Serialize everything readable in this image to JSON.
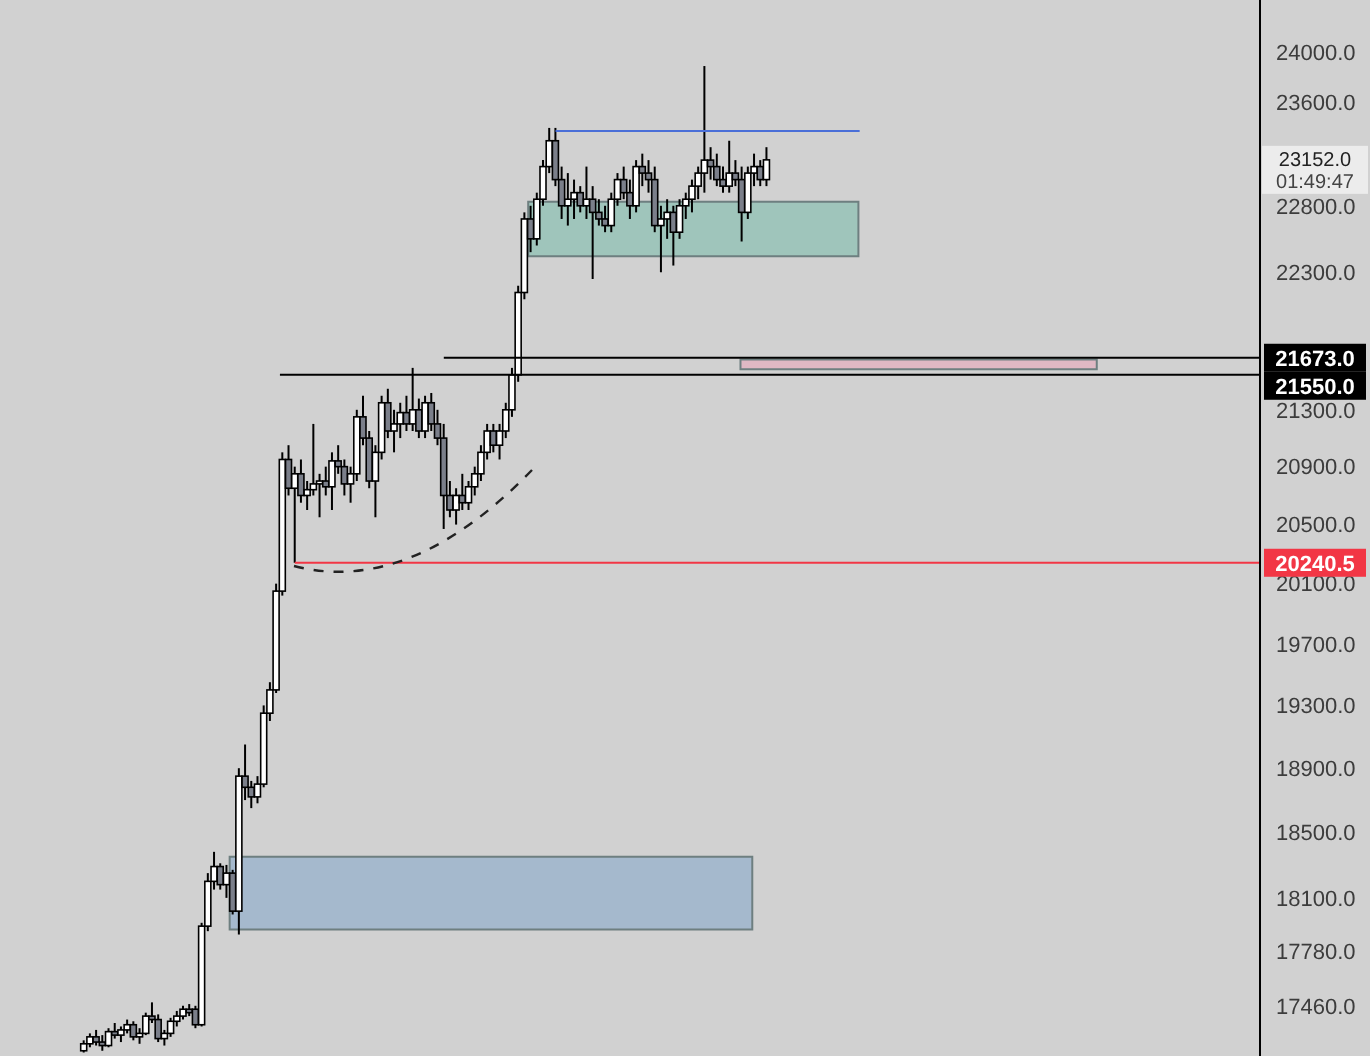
{
  "chart_data": {
    "type": "candlestick",
    "categories": [
      null,
      null,
      null,
      null,
      null,
      null,
      null,
      null,
      null,
      null,
      null,
      null,
      null,
      null,
      null,
      null,
      null,
      null,
      null,
      null,
      null,
      null,
      null,
      null,
      null,
      null,
      null,
      null,
      null,
      null,
      null,
      null,
      null,
      null,
      null,
      null,
      null,
      null,
      null,
      null,
      null,
      null,
      null,
      null,
      null,
      null,
      null,
      null,
      null,
      null,
      null,
      null,
      null,
      null,
      null,
      null,
      null,
      null,
      null,
      null,
      null,
      null,
      null,
      null,
      null,
      null,
      null,
      null,
      null,
      null,
      null,
      null,
      null,
      null,
      null,
      null,
      null,
      null,
      null,
      null,
      null,
      null,
      null,
      null,
      null,
      null,
      null,
      null,
      null,
      null,
      null,
      null,
      null,
      null,
      null,
      null,
      null,
      null,
      null,
      null,
      null,
      null,
      null,
      null,
      null,
      null,
      null,
      null,
      null,
      null,
      null,
      null,
      null,
      null,
      null,
      null,
      null,
      null,
      null,
      null,
      null,
      null,
      null,
      null,
      null,
      null,
      null,
      null,
      null,
      null,
      null,
      null,
      null,
      null,
      null,
      null,
      null,
      null,
      null,
      null,
      null,
      null,
      null,
      null,
      null,
      null,
      null,
      null,
      null,
      null,
      null,
      null,
      null,
      null,
      null,
      null,
      null,
      null,
      null,
      null,
      null,
      null,
      null,
      null,
      null,
      null,
      null,
      null,
      null,
      null,
      null,
      null,
      null,
      null,
      null,
      null,
      null,
      null,
      null,
      null,
      null,
      null,
      null,
      null,
      null,
      null,
      null,
      null,
      null,
      null,
      null,
      null,
      null,
      null,
      null,
      null,
      null,
      null,
      null,
      null,
      null,
      null,
      null
    ],
    "ohlc": [
      null,
      null,
      null,
      null,
      null,
      null,
      null,
      null,
      null,
      null,
      null,
      null,
      null,
      [
        17200,
        17260,
        17190,
        17240
      ],
      [
        17240,
        17300,
        17220,
        17280
      ],
      [
        17280,
        17320,
        17230,
        17250
      ],
      [
        17250,
        17290,
        17200,
        17230
      ],
      [
        17230,
        17330,
        17220,
        17310
      ],
      [
        17310,
        17360,
        17270,
        17290
      ],
      [
        17290,
        17340,
        17250,
        17320
      ],
      [
        17320,
        17380,
        17300,
        17350
      ],
      [
        17350,
        17370,
        17260,
        17280
      ],
      [
        17280,
        17330,
        17240,
        17300
      ],
      [
        17300,
        17420,
        17290,
        17400
      ],
      [
        17400,
        17480,
        17360,
        17380
      ],
      [
        17380,
        17410,
        17250,
        17270
      ],
      [
        17270,
        17320,
        17230,
        17300
      ],
      [
        17300,
        17390,
        17280,
        17370
      ],
      [
        17370,
        17430,
        17340,
        17400
      ],
      [
        17400,
        17460,
        17380,
        17440
      ],
      [
        17440,
        17470,
        17400,
        17420
      ],
      [
        17440,
        17460,
        17330,
        17350
      ],
      [
        17350,
        17950,
        17340,
        17930
      ],
      [
        17930,
        18250,
        17900,
        18200
      ],
      [
        18200,
        18380,
        18150,
        18290
      ],
      [
        18290,
        18310,
        18150,
        18180
      ],
      [
        18180,
        18300,
        18100,
        18250
      ],
      [
        18250,
        18270,
        18000,
        18020
      ],
      [
        18020,
        18900,
        17880,
        18850
      ],
      [
        18850,
        19050,
        18700,
        18780
      ],
      [
        18780,
        18820,
        18650,
        18720
      ],
      [
        18720,
        18850,
        18680,
        18800
      ],
      [
        18800,
        19300,
        18780,
        19250
      ],
      [
        19250,
        19450,
        19200,
        19400
      ],
      [
        19400,
        20100,
        19380,
        20050
      ],
      [
        20050,
        21000,
        20020,
        20950
      ],
      [
        20950,
        21050,
        20700,
        20750
      ],
      [
        20750,
        20900,
        20240.5,
        20850
      ],
      [
        20850,
        20950,
        20650,
        20700
      ],
      [
        20700,
        20800,
        20600,
        20740
      ],
      [
        20740,
        21200,
        20700,
        20780
      ],
      [
        20780,
        20850,
        20550,
        20800
      ],
      [
        20800,
        20900,
        20700,
        20760
      ],
      [
        20760,
        21000,
        20600,
        20940
      ],
      [
        20940,
        21050,
        20850,
        20900
      ],
      [
        20900,
        20950,
        20700,
        20780
      ],
      [
        20780,
        20900,
        20650,
        20850
      ],
      [
        20850,
        21300,
        20800,
        21250
      ],
      [
        21250,
        21400,
        21050,
        21100
      ],
      [
        21100,
        21150,
        20750,
        20800
      ],
      [
        20800,
        21050,
        20550,
        21000
      ],
      [
        21000,
        21400,
        20950,
        21350
      ],
      [
        21350,
        21450,
        21100,
        21150
      ],
      [
        21150,
        21300,
        21000,
        21200
      ],
      [
        21200,
        21350,
        21100,
        21280
      ],
      [
        21280,
        21400,
        21150,
        21200
      ],
      [
        21200,
        21600,
        21150,
        21300
      ],
      [
        21300,
        21380,
        21100,
        21150
      ],
      [
        21150,
        21400,
        21100,
        21350
      ],
      [
        21350,
        21420,
        21150,
        21200
      ],
      [
        21200,
        21300,
        21050,
        21100
      ],
      [
        21100,
        21200,
        20470,
        20700
      ],
      [
        20700,
        20800,
        20550,
        20600
      ],
      [
        20600,
        20750,
        20500,
        20700
      ],
      [
        20700,
        20850,
        20600,
        20650
      ],
      [
        20650,
        20800,
        20600,
        20760
      ],
      [
        20760,
        20900,
        20700,
        20850
      ],
      [
        20850,
        21050,
        20800,
        21000
      ],
      [
        21000,
        21200,
        20950,
        21150
      ],
      [
        21150,
        21200,
        21000,
        21050
      ],
      [
        21050,
        21200,
        20950,
        21150
      ],
      [
        21150,
        21350,
        21100,
        21300
      ],
      [
        21300,
        21600,
        21250,
        21550
      ],
      [
        21550,
        22200,
        21500,
        22150
      ],
      [
        22150,
        22750,
        22100,
        22700
      ],
      [
        22700,
        22800,
        22450,
        22550
      ],
      [
        22550,
        22900,
        22500,
        22850
      ],
      [
        22850,
        23150,
        22800,
        23100
      ],
      [
        23100,
        23400,
        23050,
        23300
      ],
      [
        23300,
        23400,
        22950,
        23000
      ],
      [
        23000,
        23100,
        22700,
        22800
      ],
      [
        22800,
        23050,
        22650,
        22850
      ],
      [
        22850,
        23000,
        22700,
        22900
      ],
      [
        22900,
        22950,
        22750,
        22800
      ],
      [
        22800,
        23100,
        22700,
        22850
      ],
      [
        22850,
        22950,
        22250,
        22750
      ],
      [
        22750,
        22850,
        22650,
        22700
      ],
      [
        22700,
        22800,
        22600,
        22650
      ],
      [
        22650,
        22900,
        22600,
        22850
      ],
      [
        22850,
        23050,
        22800,
        23000
      ],
      [
        23000,
        23100,
        22850,
        22900
      ],
      [
        22900,
        23000,
        22700,
        22800
      ],
      [
        22800,
        23150,
        22750,
        23100
      ],
      [
        23100,
        23200,
        22950,
        23050
      ],
      [
        23050,
        23150,
        22900,
        23000
      ],
      [
        23000,
        23100,
        22600,
        22650
      ],
      [
        22650,
        22800,
        22300,
        22700
      ],
      [
        22700,
        22850,
        22550,
        22750
      ],
      [
        22750,
        22800,
        22350,
        22600
      ],
      [
        22600,
        22850,
        22550,
        22800
      ],
      [
        22800,
        22900,
        22700,
        22850
      ],
      [
        22850,
        23000,
        22750,
        22950
      ],
      [
        22950,
        23100,
        22850,
        23050
      ],
      [
        23050,
        23888,
        22900,
        23150
      ],
      [
        23150,
        23250,
        23000,
        23100
      ],
      [
        23100,
        23200,
        22950,
        23000
      ],
      [
        23000,
        23100,
        22900,
        22950
      ],
      [
        22950,
        23300,
        22900,
        23050
      ],
      [
        23050,
        23150,
        22950,
        23000
      ],
      [
        23000,
        23100,
        22530,
        22750
      ],
      [
        22750,
        23100,
        22700,
        23050
      ],
      [
        23050,
        23200,
        22950,
        23100
      ],
      [
        23100,
        23150,
        22950,
        23000
      ],
      [
        23000,
        23250,
        22950,
        23152
      ],
      null,
      null,
      null,
      null,
      null,
      null,
      null,
      null,
      null,
      null,
      null,
      null,
      null,
      null,
      null,
      null,
      null,
      null,
      null,
      null,
      null,
      null,
      null,
      null,
      null,
      null,
      null,
      null,
      null,
      null,
      null,
      null,
      null,
      null,
      null,
      null,
      null,
      null,
      null,
      null,
      null,
      null,
      null,
      null,
      null,
      null,
      null,
      null,
      null,
      null,
      null,
      null,
      null,
      null,
      null,
      null,
      null,
      null,
      null,
      null,
      null,
      null,
      null,
      null,
      null,
      null,
      null,
      null,
      null,
      null,
      null,
      null,
      null,
      null,
      null,
      null,
      null,
      null,
      null
    ],
    "log": "y",
    "ylim": [
      17170,
      24420
    ],
    "yticks": [
      {
        "value": 24000,
        "label": "24000.0"
      },
      {
        "value": 23600,
        "label": "23600.0"
      },
      {
        "value": 22800,
        "label": "22800.0"
      },
      {
        "value": 22300,
        "label": "22300.0"
      },
      {
        "value": 21300,
        "label": "21300.0"
      },
      {
        "value": 20900,
        "label": "20900.0"
      },
      {
        "value": 20500,
        "label": "20500.0"
      },
      {
        "value": 20100,
        "label": "20100.0"
      },
      {
        "value": 19700,
        "label": "19700.0"
      },
      {
        "value": 19300,
        "label": "19300.0"
      },
      {
        "value": 18900,
        "label": "18900.0"
      },
      {
        "value": 18500,
        "label": "18500.0"
      },
      {
        "value": 18100,
        "label": "18100.0"
      },
      {
        "value": 17780,
        "label": "17780.0"
      },
      {
        "value": 17460,
        "label": "17460.0"
      }
    ],
    "tick_labels": "y",
    "ref_lines": [
      {
        "axis": "y",
        "value": 23375,
        "label": null,
        "color": "#4a6fd8"
      },
      {
        "axis": "y",
        "value": 21673,
        "label": "21673.0",
        "color": "#000000"
      },
      {
        "axis": "y",
        "value": 21550,
        "label": "21550.0",
        "color": "#000000"
      },
      {
        "axis": "y",
        "value": 20240.5,
        "label": "20240.5",
        "color": "#f23645"
      }
    ],
    "bands": [
      {
        "axis": "y",
        "from": 22420,
        "to": 22830,
        "color": "#9fc5bb"
      },
      {
        "axis": "y",
        "from": 21590,
        "to": 21660,
        "color": "#dfb8c4"
      },
      {
        "axis": "y",
        "from": 17910,
        "to": 18350,
        "color": "#a5b9cd"
      }
    ],
    "annotations": [
      "23152.0",
      "01:49:47"
    ]
  }
}
